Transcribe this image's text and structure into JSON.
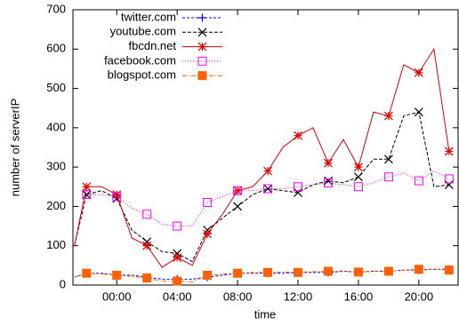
{
  "chart_data": {
    "type": "line",
    "x_label": "time",
    "y_label": "number of serverIP",
    "x": [
      -2.8,
      -2,
      -1,
      0,
      1,
      2,
      3,
      4,
      5,
      6,
      7,
      8,
      9,
      10,
      11,
      12,
      13,
      14,
      15,
      16,
      17,
      18,
      19,
      20,
      21,
      22
    ],
    "xlim": [
      -2.9,
      22.6
    ],
    "xticks": [
      {
        "value": 0,
        "label": "00:00"
      },
      {
        "value": 4,
        "label": "04:00"
      },
      {
        "value": 8,
        "label": "08:00"
      },
      {
        "value": 12,
        "label": "12:00"
      },
      {
        "value": 16,
        "label": "16:00"
      },
      {
        "value": 20,
        "label": "20:00"
      }
    ],
    "ylim": [
      0,
      700
    ],
    "yticks": [
      0,
      100,
      200,
      300,
      400,
      500,
      600,
      700
    ],
    "legend": "top-left",
    "series": [
      {
        "name": "twitter.com",
        "color": "#0000ff",
        "dash": "3,2",
        "marker": "plus",
        "values": [
          20,
          30,
          30,
          25,
          25,
          20,
          15,
          15,
          15,
          20,
          25,
          30,
          30,
          30,
          30,
          32,
          32,
          32,
          35,
          33,
          35,
          35,
          38,
          38,
          40,
          40
        ]
      },
      {
        "name": "youtube.com",
        "color": "#000000",
        "dash": "4,2",
        "marker": "cross",
        "values": [
          100,
          230,
          240,
          220,
          140,
          110,
          85,
          80,
          60,
          140,
          170,
          200,
          230,
          245,
          240,
          235,
          255,
          265,
          260,
          275,
          320,
          320,
          430,
          440,
          250,
          255
        ]
      },
      {
        "name": "fbcdn.net",
        "color": "#e00000",
        "dash": "none",
        "marker": "star",
        "values": [
          100,
          250,
          250,
          230,
          120,
          100,
          45,
          70,
          50,
          130,
          180,
          240,
          250,
          290,
          350,
          380,
          400,
          310,
          370,
          300,
          440,
          430,
          560,
          540,
          600,
          340
        ]
      },
      {
        "name": "facebook.com",
        "color": "#ff00ff",
        "dash": "1,2",
        "marker": "square",
        "values": [
          100,
          230,
          230,
          225,
          195,
          180,
          155,
          150,
          150,
          210,
          225,
          240,
          240,
          245,
          245,
          250,
          255,
          260,
          255,
          250,
          260,
          275,
          285,
          265,
          290,
          270
        ]
      },
      {
        "name": "blogspot.com",
        "color": "#ff6000",
        "dash": "5,2,1,2",
        "marker": "filled-square",
        "values": [
          20,
          30,
          28,
          25,
          22,
          18,
          10,
          10,
          8,
          25,
          28,
          30,
          32,
          32,
          33,
          32,
          34,
          35,
          36,
          33,
          36,
          35,
          38,
          40,
          40,
          38
        ]
      }
    ]
  }
}
